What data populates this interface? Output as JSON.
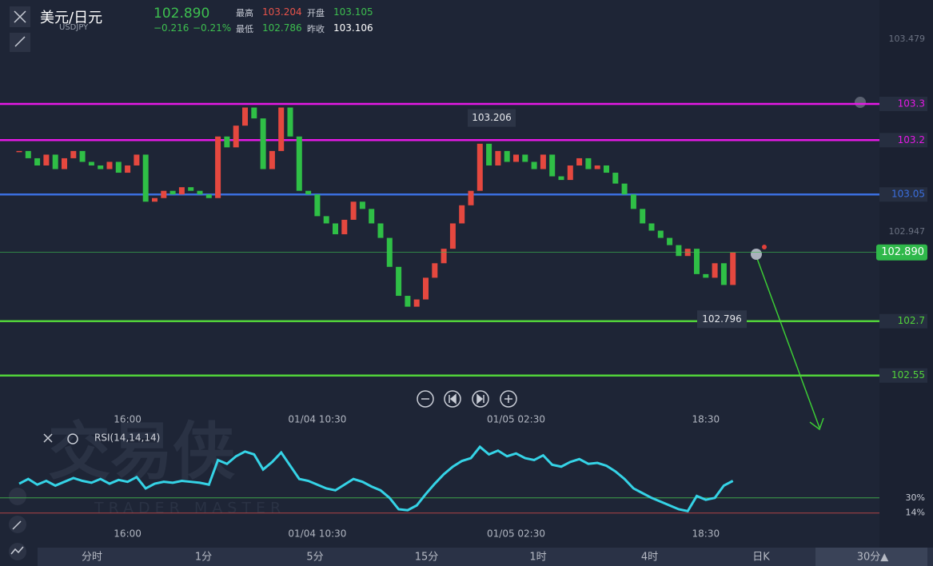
{
  "header": {
    "pair": "美元/日元",
    "symbol": "USDJPY",
    "price": "102.890",
    "change": "−0.216",
    "change_pct": "−0.21%",
    "stats": [
      {
        "label": "最高",
        "value": "103.204"
      },
      {
        "label": "开盘",
        "value": "103.105"
      },
      {
        "label": "最低",
        "value": "102.786"
      },
      {
        "label": "昨收",
        "value": "103.106"
      }
    ]
  },
  "watermark": {
    "brand": "交易侠",
    "tagline": "TRADER MASTER"
  },
  "chart_data": [
    {
      "type": "candlestick",
      "categories": [
        null,
        null,
        null,
        null,
        null,
        null,
        null,
        null,
        null,
        null,
        null,
        null,
        "16:00",
        null,
        null,
        null,
        null,
        null,
        null,
        null,
        null,
        null,
        null,
        null,
        null,
        null,
        null,
        null,
        null,
        null,
        null,
        null,
        null,
        "01/04 10:30",
        null,
        null,
        null,
        null,
        null,
        null,
        null,
        null,
        null,
        null,
        null,
        null,
        null,
        null,
        null,
        null,
        null,
        null,
        null,
        null,
        null,
        "01/05 02:30",
        null,
        null,
        null,
        null,
        null,
        null,
        null,
        null,
        null,
        null,
        null,
        null,
        null,
        null,
        null,
        null,
        null,
        null,
        null,
        null,
        "18:30",
        null,
        null,
        null
      ],
      "values": [
        103.17,
        103.15,
        103.13,
        103.16,
        103.12,
        103.15,
        103.17,
        103.14,
        103.13,
        103.12,
        103.14,
        103.11,
        103.13,
        103.16,
        103.03,
        103.04,
        103.06,
        103.05,
        103.07,
        103.06,
        103.05,
        103.04,
        103.21,
        103.18,
        103.24,
        103.29,
        103.26,
        103.12,
        103.17,
        103.29,
        103.21,
        103.06,
        103.05,
        102.99,
        102.97,
        102.94,
        102.98,
        103.03,
        103.01,
        102.97,
        102.93,
        102.85,
        102.77,
        102.74,
        102.76,
        102.82,
        102.86,
        102.9,
        102.97,
        103.02,
        103.06,
        103.19,
        103.13,
        103.17,
        103.14,
        103.16,
        103.14,
        103.12,
        103.16,
        103.1,
        103.09,
        103.13,
        103.15,
        103.12,
        103.13,
        103.11,
        103.08,
        103.05,
        103.01,
        102.97,
        102.95,
        102.93,
        102.91,
        102.88,
        102.9,
        102.83,
        102.82,
        102.86,
        102.8,
        102.89
      ],
      "up_color": "#e5483f",
      "down_color": "#2fbf46",
      "ylim": [
        102.461,
        103.587
      ],
      "yticks": [
        102.947,
        103.479
      ],
      "levels": [
        {
          "value": 103.3,
          "color": "#e619e6"
        },
        {
          "value": 103.2,
          "color": "#e619e6"
        },
        {
          "value": 103.05,
          "color": "#3b6fe0"
        },
        {
          "value": 102.7,
          "color": "#52d33a"
        },
        {
          "value": 102.55,
          "color": "#52d33a"
        }
      ],
      "last_price": {
        "value": 102.89,
        "label": "102.890"
      },
      "high_label": 103.206,
      "low_label": 102.796
    },
    {
      "type": "line",
      "name": "RSI(14,14,14)",
      "color": "#35d3e6",
      "values": [
        45,
        50,
        44,
        48,
        43,
        47,
        51,
        48,
        46,
        50,
        45,
        49,
        47,
        52,
        40,
        45,
        47,
        46,
        48,
        47,
        46,
        44,
        70,
        66,
        74,
        79,
        76,
        60,
        68,
        78,
        64,
        50,
        48,
        44,
        40,
        38,
        44,
        50,
        47,
        42,
        38,
        30,
        18,
        17,
        22,
        34,
        45,
        55,
        63,
        69,
        72,
        84,
        76,
        80,
        74,
        77,
        72,
        70,
        75,
        65,
        63,
        68,
        71,
        66,
        67,
        64,
        58,
        50,
        40,
        35,
        30,
        26,
        22,
        18,
        16,
        32,
        28,
        30,
        43,
        48
      ],
      "ylim": [
        7,
        100
      ],
      "yticks": [
        {
          "value": 14,
          "label": "14%"
        },
        {
          "value": 30,
          "label": "30%"
        }
      ]
    }
  ],
  "tabs": [
    "分时",
    "1分",
    "5分",
    "15分",
    "1时",
    "4时",
    "日K",
    "30分▲"
  ]
}
